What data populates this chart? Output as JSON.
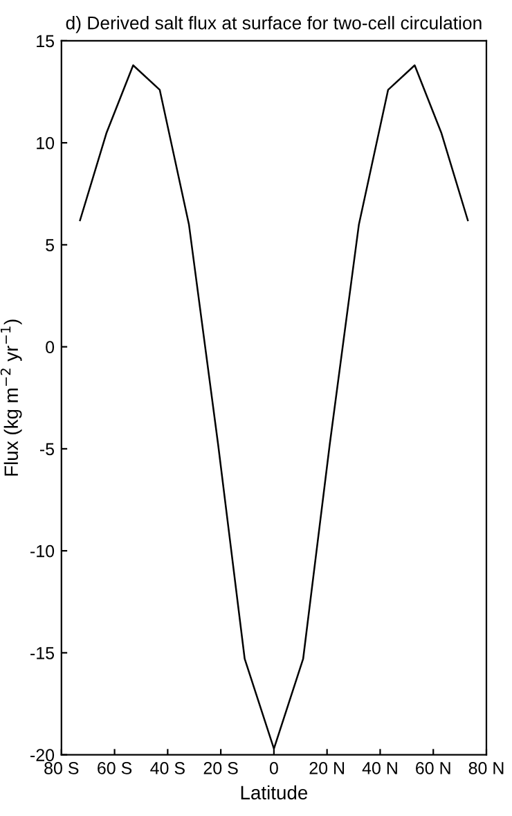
{
  "chart_data": {
    "type": "line",
    "title": "d) Derived salt flux at surface for two-cell circulation",
    "xlabel": "Latitude",
    "ylabel": "Flux (kg m$^{−2}$ yr$^{−1}$)",
    "series": [
      {
        "color": "#000000",
        "x": [
          -73,
          -63,
          -53,
          -43,
          -32,
          -21,
          -11,
          0,
          11,
          21,
          32,
          43,
          53,
          63,
          73
        ],
        "values": [
          6.2,
          10.5,
          13.8,
          12.6,
          6,
          -4.8,
          -15.3,
          -19.7,
          -15.3,
          -4.8,
          6,
          12.6,
          13.8,
          10.5,
          6.2
        ]
      }
    ],
    "xlim": [
      -80,
      80
    ],
    "xticks": [
      {
        "value": -80,
        "label": "80 S"
      },
      {
        "value": -60,
        "label": "60 S"
      },
      {
        "value": -40,
        "label": "40 S"
      },
      {
        "value": -20,
        "label": "20 S"
      },
      0,
      {
        "value": 20,
        "label": "20 N"
      },
      {
        "value": 40,
        "label": "40 N"
      },
      {
        "value": 60,
        "label": "60 N"
      },
      {
        "value": 80,
        "label": "80 N"
      }
    ],
    "ylim": [
      -20,
      15
    ],
    "yticks": [
      -20,
      -15,
      -10,
      -5,
      0,
      5,
      10,
      15
    ],
    "grid": false,
    "legend": false,
    "marker": "none",
    "line_style": "solid"
  }
}
